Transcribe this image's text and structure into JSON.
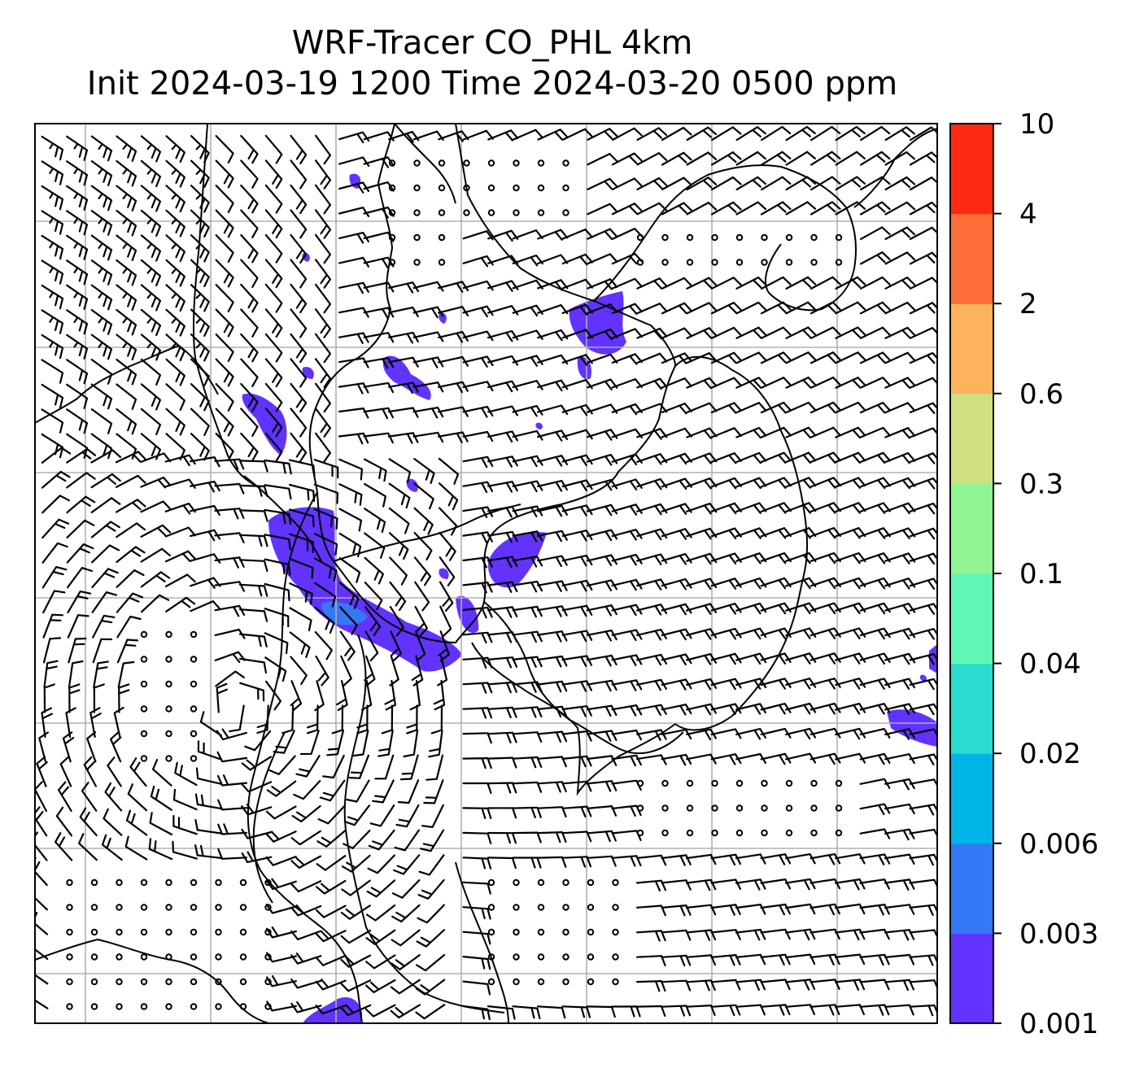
{
  "title": {
    "line1": "WRF-Tracer CO_PHL 4km",
    "line2": "Init 2024-03-19 1200 Time 2024-03-20 0500 ppm"
  },
  "colorbar": {
    "levels": [
      "0.001",
      "0.003",
      "0.006",
      "0.02",
      "0.04",
      "0.1",
      "0.3",
      "0.6",
      "2",
      "4",
      "10"
    ],
    "colors": [
      "#6233ff",
      "#3478f5",
      "#00b4e8",
      "#2bdbd0",
      "#60f7b4",
      "#90f590",
      "#cfe082",
      "#fdb35e",
      "#ff6d38",
      "#ff2a14"
    ]
  },
  "map": {
    "gridlines": true,
    "grid_color": "#b0b0b0",
    "coast_color": "#000000",
    "barb_color": "#000000",
    "tracer_plumes": [
      {
        "name": "delaware-river-plume",
        "level": "0.001-0.003"
      },
      {
        "name": "plume-core",
        "level": "0.003-0.006"
      },
      {
        "name": "northeast-plume",
        "level": "0.001-0.003"
      },
      {
        "name": "east-edge-plume",
        "level": "0.001-0.003"
      },
      {
        "name": "south-edge-plume",
        "level": "0.001-0.003"
      }
    ]
  }
}
